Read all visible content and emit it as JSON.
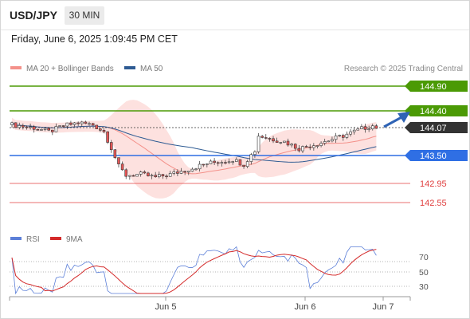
{
  "header": {
    "symbol": "USD/JPY",
    "timeframe": "30 MIN",
    "datetime": "Friday, June 6, 2025 1:09:45 PM CET"
  },
  "legend": {
    "items": [
      {
        "label": "MA 20 + Bollinger Bands",
        "color": "#f4918a"
      },
      {
        "label": "MA 50",
        "color": "#2e5b93"
      }
    ],
    "research": "Research © 2025 Trading Central"
  },
  "levels": [
    {
      "value": "144.90",
      "color": "#4b9a05",
      "style": "box"
    },
    {
      "value": "144.40",
      "color": "#4b9a05",
      "style": "box"
    },
    {
      "value": "144.07",
      "color": "#333333",
      "style": "box"
    },
    {
      "value": "143.50",
      "color": "#2f6fe4",
      "style": "box"
    },
    {
      "value": "142.95",
      "color": "#e04040",
      "style": "text"
    },
    {
      "value": "142.55",
      "color": "#e04040",
      "style": "text"
    }
  ],
  "rsi": {
    "legend": [
      {
        "label": "RSI",
        "color": "#5c7fd8"
      },
      {
        "label": "9MA",
        "color": "#d42b2b"
      }
    ],
    "scale": [
      "70",
      "50",
      "30"
    ]
  },
  "xaxis": {
    "ticks": [
      "Jun 5",
      "Jun 6",
      "Jun 7"
    ]
  },
  "colors": {
    "bull": "#ffffff",
    "bear": "#e65757",
    "candle_border": "#333333",
    "band_fill": "#fde1df",
    "ma50": "#2e5b93",
    "ma20": "#f4918a",
    "forecast_arrow": "#2e63b5"
  }
}
